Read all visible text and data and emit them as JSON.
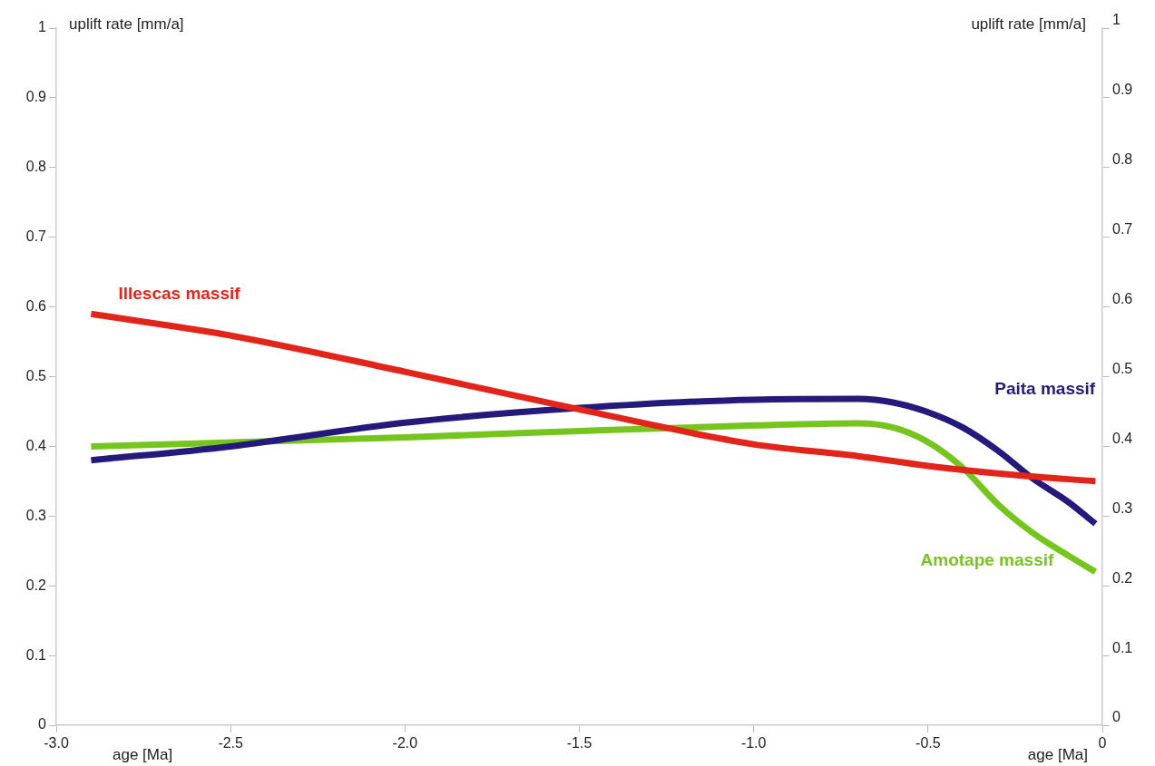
{
  "chart_data": {
    "type": "line",
    "xlabel": "age [Ma]",
    "ylabel": "uplift rate [mm/a]",
    "y2label": "uplift rate [mm/a]",
    "xlim": [
      -3,
      0
    ],
    "xticks": [
      {
        "value": -3,
        "label": "-3.0"
      },
      {
        "value": -2.5,
        "label": "-2.5"
      },
      {
        "value": -2,
        "label": "-2.0"
      },
      {
        "value": -1.5,
        "label": "-1.5"
      },
      {
        "value": -1,
        "label": "-1.0"
      },
      {
        "value": -0.5,
        "label": "-0.5"
      },
      0
    ],
    "ylim": [
      0,
      1
    ],
    "yticks": [
      0,
      0.1,
      0.2,
      0.3,
      0.4,
      0.5,
      0.6,
      0.7,
      0.8,
      0.9,
      1
    ],
    "y2lim": [
      0,
      1
    ],
    "y2ticks": [
      0,
      0.1,
      0.2,
      0.3,
      0.4,
      0.5,
      0.6,
      0.7,
      0.8,
      0.9,
      1
    ],
    "grid": false,
    "legend": false,
    "marker": "none",
    "line_style": "solid",
    "series": [
      {
        "name": "Illescas massif",
        "color": "#e3241b",
        "x": [
          -2.9,
          -2.5,
          -2,
          -1.5,
          -1,
          -0.7,
          -0.5,
          -0.25,
          -0.02
        ],
        "values": [
          0.59,
          0.559,
          0.507,
          0.453,
          0.403,
          0.386,
          0.372,
          0.359,
          0.35
        ]
      },
      {
        "name": "Paita massif",
        "color": "#241a7c",
        "x": [
          -2.9,
          -2.5,
          -2,
          -1.5,
          -1,
          -0.7,
          -0.6,
          -0.5,
          -0.4,
          -0.3,
          -0.2,
          -0.1,
          -0.02
        ],
        "values": [
          0.38,
          0.4,
          0.434,
          0.455,
          0.467,
          0.468,
          0.463,
          0.449,
          0.427,
          0.394,
          0.354,
          0.321,
          0.289
        ]
      },
      {
        "name": "Amotape massif",
        "color": "#76c51e",
        "x": [
          -2.9,
          -2,
          -1.5,
          -1,
          -0.7,
          -0.6,
          -0.5,
          -0.4,
          -0.3,
          -0.2,
          -0.1,
          -0.02
        ],
        "values": [
          0.4,
          0.413,
          0.422,
          0.43,
          0.433,
          0.427,
          0.406,
          0.369,
          0.317,
          0.276,
          0.244,
          0.22
        ]
      }
    ]
  }
}
